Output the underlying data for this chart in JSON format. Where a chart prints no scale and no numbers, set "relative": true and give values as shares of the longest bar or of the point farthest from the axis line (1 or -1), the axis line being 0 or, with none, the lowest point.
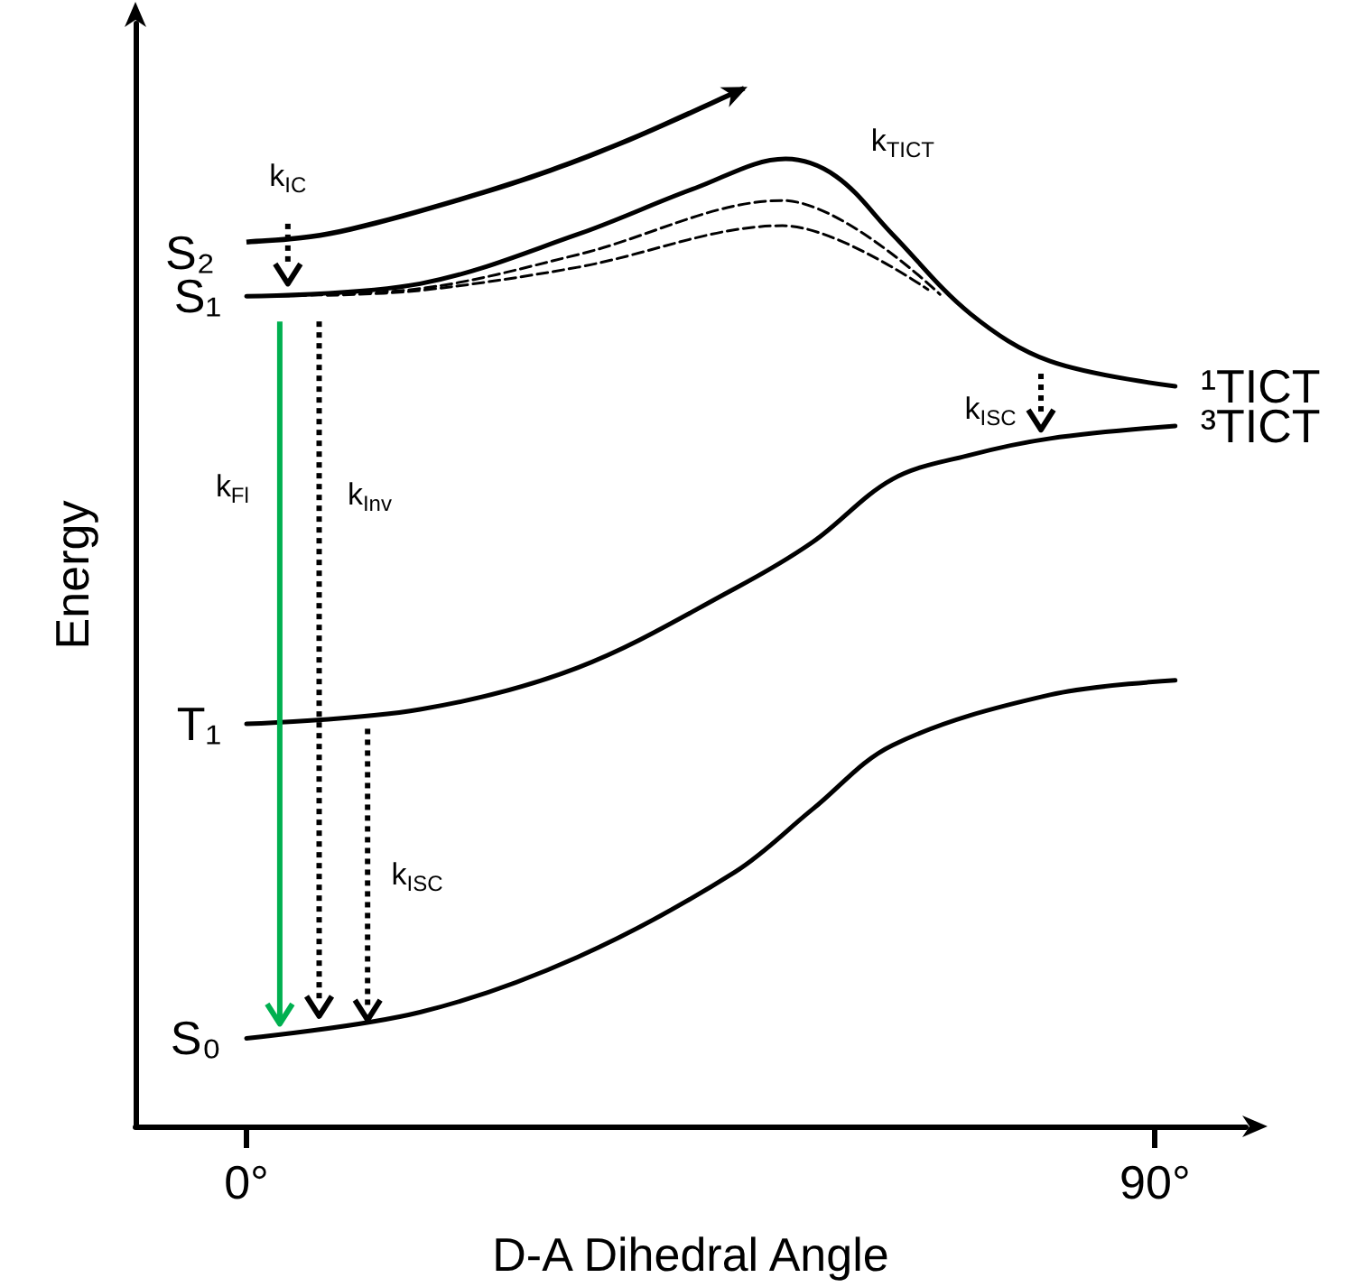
{
  "chart_data": {
    "type": "line",
    "relative": true,
    "xlabel": "D-A Dihedral Angle",
    "ylabel": "Energy",
    "xlim": [
      -11,
      99
    ],
    "xticks": [
      {
        "value": 0,
        "label": "0°"
      },
      {
        "value": 90,
        "label": "90°"
      }
    ],
    "tick_labels": "x",
    "grid": false,
    "marker": "none",
    "legend": "left",
    "series": [
      {
        "name": "S₁",
        "color": "#000000",
        "x": [
          0,
          17.2,
          32.8,
          44.5,
          53.4,
          58.4,
          64,
          71.7,
          79.6,
          92
        ],
        "values": [
          0.858,
          0.871,
          0.922,
          0.97,
          1,
          0.982,
          0.922,
          0.84,
          0.791,
          0.765
        ]
      },
      {
        "color": "#000000",
        "line_style": "dashed",
        "x": [
          0,
          17.2,
          32.8,
          53.1,
          68.7
        ],
        "values": [
          0.858,
          0.866,
          0.901,
          0.957,
          0.86
        ]
      },
      {
        "color": "#000000",
        "line_style": "dashed",
        "x": [
          8,
          17.2,
          32.8,
          53.1,
          67.5
        ],
        "values": [
          0.859,
          0.864,
          0.888,
          0.931,
          0.865
        ]
      },
      {
        "name": "T₁",
        "color": "#000000",
        "x": [
          0,
          17.2,
          32.8,
          48.4,
          56.1,
          64,
          71.7,
          79.6,
          92
        ],
        "values": [
          0.416,
          0.431,
          0.474,
          0.556,
          0.604,
          0.669,
          0.694,
          0.711,
          0.724
        ]
      },
      {
        "name": "S₀",
        "color": "#000000",
        "x": [
          0,
          17.2,
          32.8,
          48.4,
          56.1,
          64,
          79.6,
          92
        ],
        "values": [
          0.091,
          0.118,
          0.175,
          0.263,
          0.328,
          0.394,
          0.446,
          0.461
        ]
      }
    ],
    "annotations": [
      "S₂",
      "k$_{IC}$",
      "k$_{TICT}$",
      "k$_{ISC}$",
      "k$_{Fl}$",
      "k$_{Inv}$",
      "k$_{ISC}$",
      {
        "text": "¹TICT",
        "x": 92,
        "y": 0.765
      },
      {
        "text": "³TICT",
        "x": 92,
        "y": 0.724
      }
    ]
  }
}
